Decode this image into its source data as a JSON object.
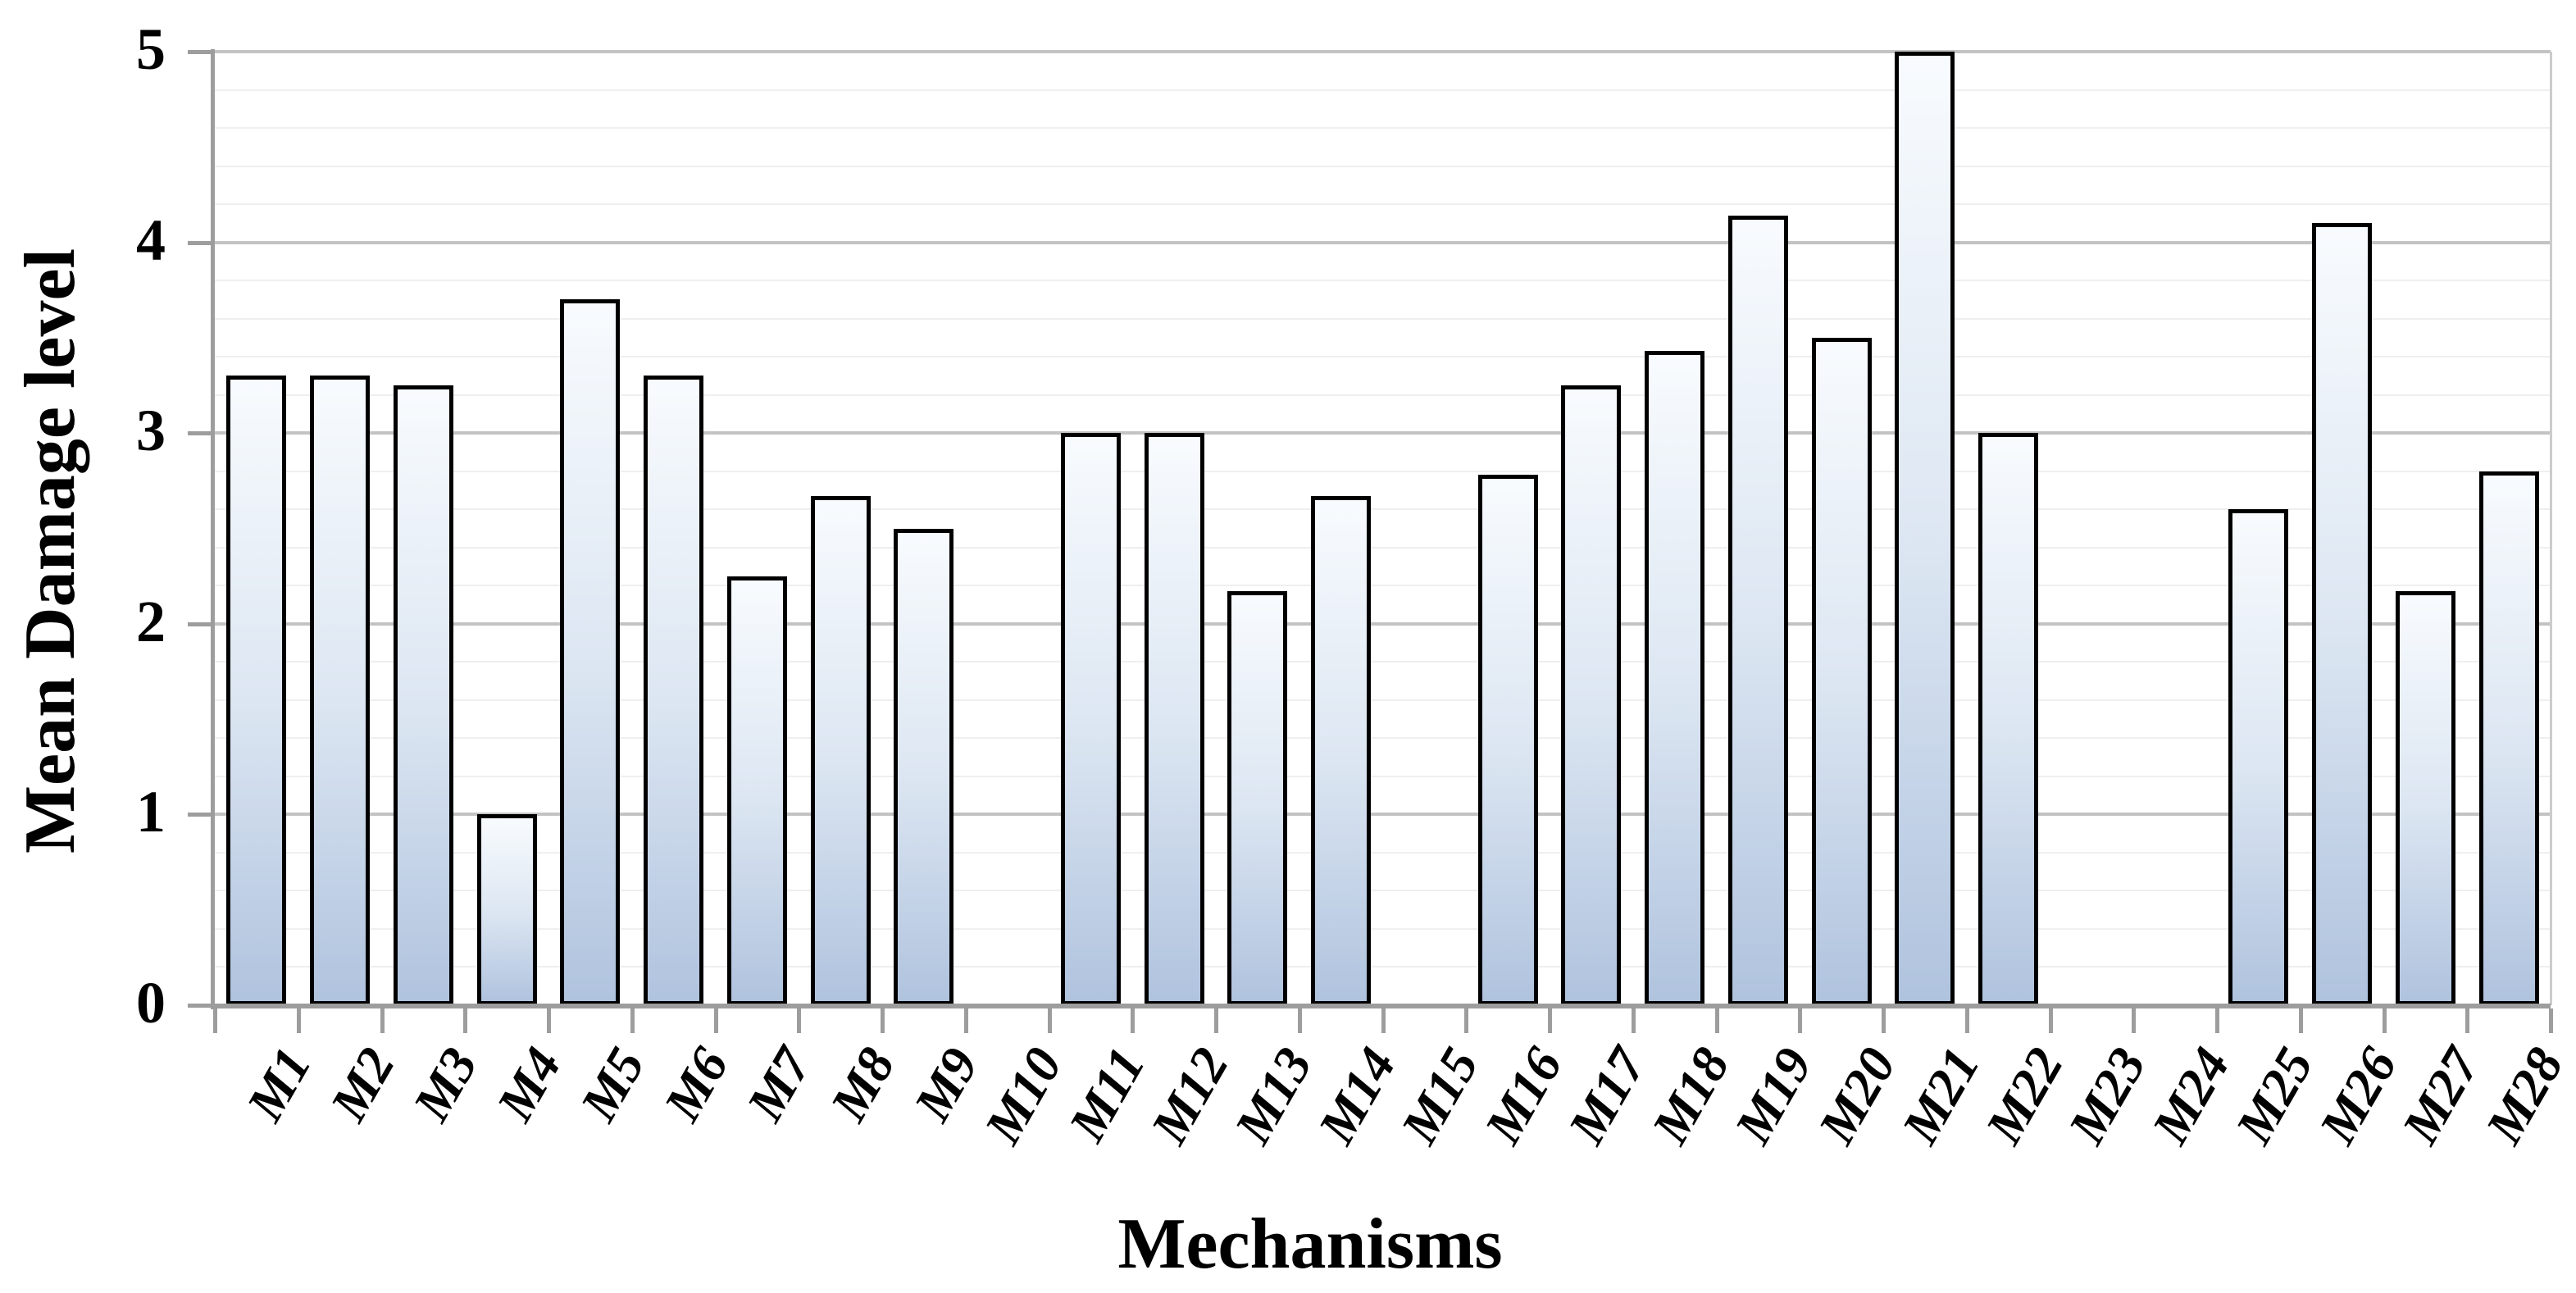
{
  "figure": {
    "background": "#ffffff"
  },
  "chart_data": {
    "type": "bar",
    "title": "",
    "xlabel": "Mechanisms",
    "ylabel": "Mean Damage level",
    "categories": [
      "M1",
      "M2",
      "M3",
      "M4",
      "M5",
      "M6",
      "M7",
      "M8",
      "M9",
      "M10",
      "M11",
      "M12",
      "M13",
      "M14",
      "M15",
      "M16",
      "M17",
      "M18",
      "M19",
      "M20",
      "M21",
      "M22",
      "M23",
      "M24",
      "M25",
      "M26",
      "M27",
      "M28"
    ],
    "values": [
      3.3,
      3.3,
      3.25,
      1.0,
      3.7,
      3.3,
      2.25,
      2.67,
      2.5,
      0,
      3.0,
      3.0,
      2.17,
      2.67,
      0,
      2.78,
      3.25,
      3.43,
      4.14,
      3.5,
      5.0,
      3.0,
      0,
      0,
      2.6,
      4.1,
      2.17,
      2.8
    ],
    "ylim": [
      0,
      5
    ],
    "y_major_ticks": [
      0,
      1,
      2,
      3,
      4,
      5
    ],
    "y_tick_labels": [
      "0",
      "1",
      "2",
      "3",
      "4",
      "5"
    ],
    "y_minor_interval": 0.2,
    "grid": "major-and-minor",
    "legend": "none"
  },
  "style": {
    "bar_fill_top": "#f8fbfe",
    "bar_fill_mid": "#dce6f2",
    "bar_fill_bottom": "#b0c3de",
    "bar_border": "#000000",
    "major_grid_color": "#c3c3c3",
    "minor_grid_color": "#efefef",
    "axis_color": "#9d9d9d",
    "plot_right_border_color": "#cccccc",
    "text_color": "#000000"
  }
}
